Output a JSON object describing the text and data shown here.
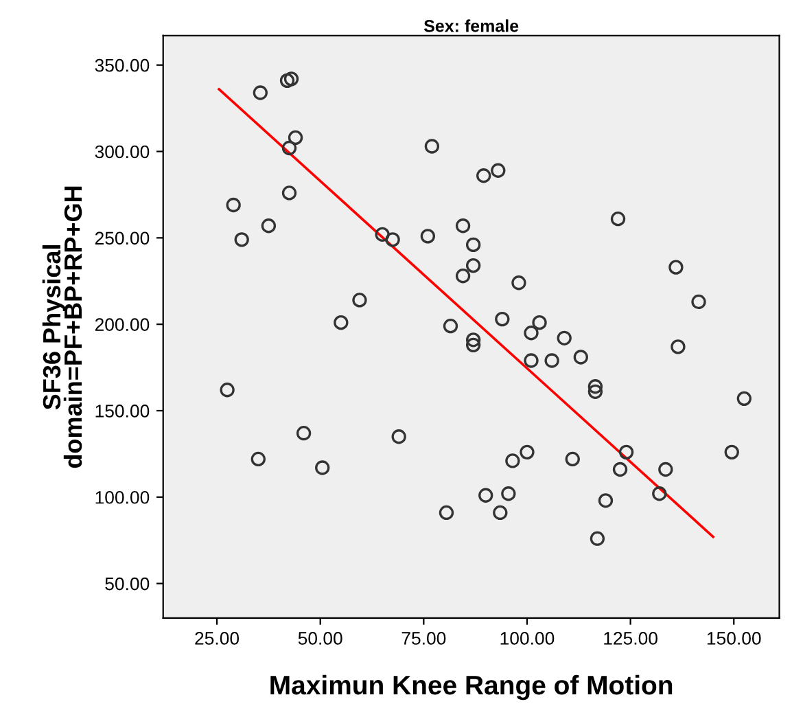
{
  "chart_data": {
    "type": "scatter",
    "title": "Sex: female",
    "xlabel": "Maximun Knee Range of Motion",
    "ylabel": "SF36 Physical\ndomain=PF+BP+RP+GH",
    "xlim": [
      12,
      161
    ],
    "ylim": [
      30,
      367
    ],
    "xticks": [
      {
        "value": 25,
        "label": "25.00"
      },
      {
        "value": 50,
        "label": "50.00"
      },
      {
        "value": 75,
        "label": "75.00"
      },
      {
        "value": 100,
        "label": "100.00"
      },
      {
        "value": 125,
        "label": "125.00"
      },
      {
        "value": 150,
        "label": "150.00"
      }
    ],
    "yticks": [
      {
        "value": 50,
        "label": "50.00"
      },
      {
        "value": 100,
        "label": "100.00"
      },
      {
        "value": 150,
        "label": "150.00"
      },
      {
        "value": 200,
        "label": "200.00"
      },
      {
        "value": 250,
        "label": "250.00"
      },
      {
        "value": 300,
        "label": "300.00"
      },
      {
        "value": 350,
        "label": "350.00"
      }
    ],
    "grid": false,
    "legend": false,
    "series": [
      {
        "marker": "circle",
        "color": "#333333",
        "x": [
          27.5,
          29,
          31,
          35,
          35.5,
          37.5,
          42,
          43,
          42.5,
          44,
          42.5,
          46,
          50.5,
          55,
          59.5,
          65,
          67.5,
          69,
          76,
          77,
          80.5,
          81.5,
          84.5,
          84.5,
          87,
          87,
          87,
          87,
          89.5,
          90,
          93,
          93.5,
          94,
          95.5,
          96.5,
          98,
          100,
          101,
          101,
          103,
          106,
          109,
          111,
          113,
          116.5,
          116.5,
          117,
          119,
          122,
          122.5,
          124,
          132,
          133.5,
          136,
          136.5,
          141.5,
          149.5,
          152.5
        ],
        "values": [
          162,
          269,
          249,
          122,
          334,
          257,
          341,
          342,
          302,
          308,
          276,
          137,
          117,
          201,
          214,
          252,
          249,
          135,
          251,
          303,
          91,
          199,
          257,
          228,
          246,
          234,
          191,
          188,
          286,
          101,
          289,
          91,
          203,
          102,
          121,
          224,
          126,
          195,
          179,
          201,
          179,
          192,
          122,
          181,
          164,
          161,
          76,
          98,
          261,
          116,
          126,
          102,
          116,
          233,
          187,
          213,
          126,
          157
        ]
      },
      {
        "type": "line",
        "color": "#ff0000",
        "x": [
          25.5,
          145
        ],
        "values": [
          336,
          77
        ]
      }
    ]
  }
}
